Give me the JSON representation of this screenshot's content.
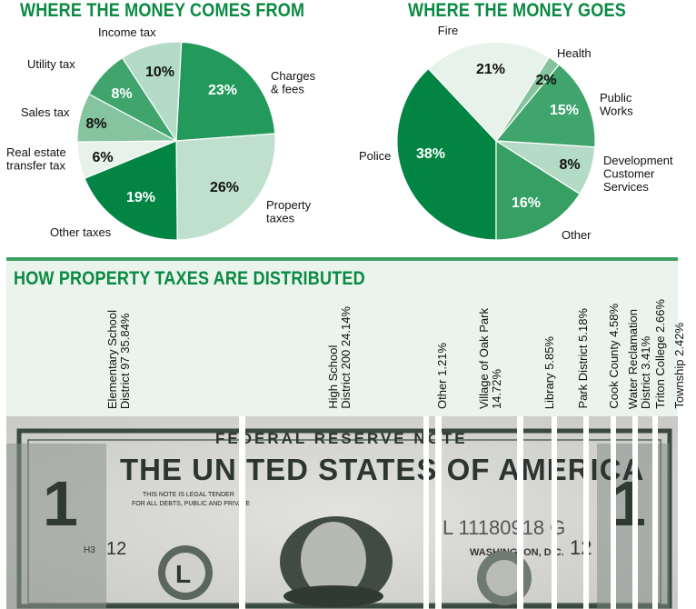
{
  "chart_data": [
    {
      "type": "pie",
      "title": "WHERE THE MONEY COMES FROM",
      "slices": [
        {
          "label": "Charges & fees",
          "value": 23,
          "display": "23%",
          "color": "#239a5c",
          "text_color": "#ffffff"
        },
        {
          "label": "Property taxes",
          "value": 26,
          "display": "26%",
          "color": "#bfe0cc",
          "text_color": "#111111"
        },
        {
          "label": "Other taxes",
          "value": 19,
          "display": "19%",
          "color": "#028442",
          "text_color": "#ffffff"
        },
        {
          "label": "Real estate transfer tax",
          "value": 6,
          "display": "6%",
          "color": "#e6f2ea",
          "text_color": "#111111"
        },
        {
          "label": "Sales tax",
          "value": 8,
          "display": "8%",
          "color": "#86c49f",
          "text_color": "#111111"
        },
        {
          "label": "Utility tax",
          "value": 8,
          "display": "8%",
          "color": "#3fa56d",
          "text_color": "#ffffff"
        },
        {
          "label": "Income tax",
          "value": 10,
          "display": "10%",
          "color": "#b3dbc5",
          "text_color": "#111111"
        }
      ]
    },
    {
      "type": "pie",
      "title": "WHERE THE MONEY GOES",
      "slices": [
        {
          "label": "Police",
          "value": 38,
          "display": "38%",
          "color": "#028442",
          "text_color": "#ffffff"
        },
        {
          "label": "Fire",
          "value": 21,
          "display": "21%",
          "color": "#e6f2ea",
          "text_color": "#111111"
        },
        {
          "label": "Health",
          "value": 2,
          "display": "2%",
          "color": "#86c49f",
          "text_color": "#111111"
        },
        {
          "label": "Public Works",
          "value": 15,
          "display": "15%",
          "color": "#3fa56d",
          "text_color": "#ffffff"
        },
        {
          "label": "Development Customer Services",
          "value": 8,
          "display": "8%",
          "color": "#b3dbc5",
          "text_color": "#111111"
        },
        {
          "label": "Other",
          "value": 16,
          "display": "16%",
          "color": "#36a064",
          "text_color": "#ffffff"
        }
      ]
    },
    {
      "type": "bar",
      "title": "HOW PROPERTY TAXES ARE DISTRIBUTED",
      "categories": [
        "Elementary School District 97",
        "High School District 200",
        "Other",
        "Village of Oak Park",
        "Library",
        "Park District",
        "Cook County",
        "Water Reclamation District",
        "Triton College",
        "Township"
      ],
      "values": [
        35.84,
        24.14,
        1.21,
        14.72,
        5.85,
        5.18,
        4.58,
        3.41,
        2.66,
        2.42
      ],
      "labels": [
        [
          "Elementary School",
          "District 97 35.84%"
        ],
        [
          "High School",
          "District 200 24.14%"
        ],
        [
          "Other 1.21%"
        ],
        [
          "Village of Oak Park",
          "14.72%"
        ],
        [
          "Library 5.85%"
        ],
        [
          "Park District 5.18%"
        ],
        [
          "Cook County 4.58%"
        ],
        [
          "Water Reclamation",
          "District 3.41%"
        ],
        [
          "Triton College 2.66%"
        ],
        [
          "Township 2.42%"
        ]
      ]
    }
  ],
  "bill_image": {
    "lettering": [
      "FEDERAL RESERVE NOTE",
      "THE UNITED STATES OF AMERICA",
      "THIS NOTE IS LEGAL TENDER",
      "FOR ALL DEBTS, PUBLIC AND PRIVATE",
      "L 11180918 G",
      "WASHINGTON, D.C.",
      "H3",
      "12",
      "L",
      "12",
      "1"
    ]
  }
}
